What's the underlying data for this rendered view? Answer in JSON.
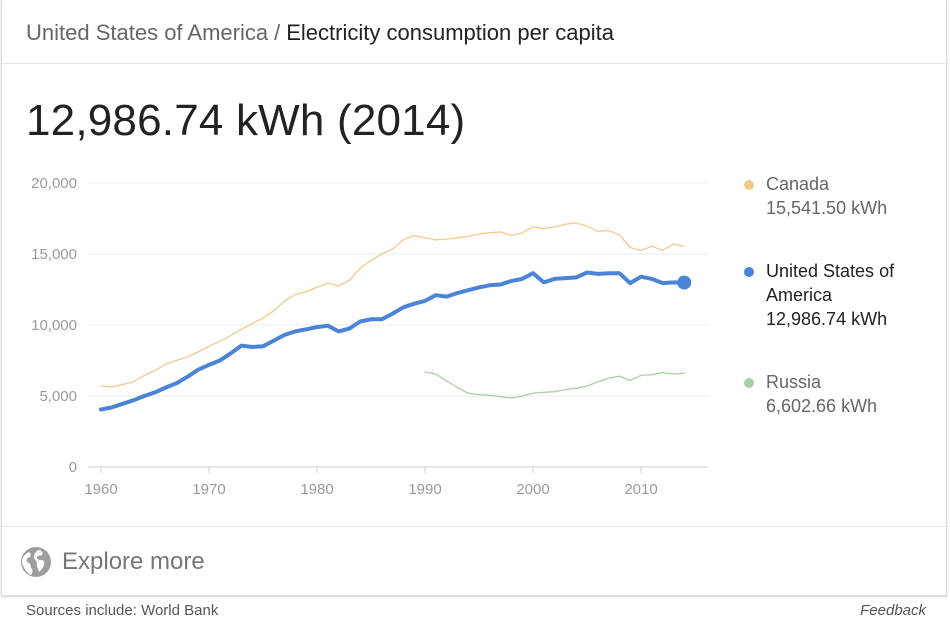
{
  "header": {
    "breadcrumb_parent": "United States of America",
    "separator": "/",
    "breadcrumb_current": "Electricity consumption per capita"
  },
  "headline": {
    "value": "12,986.74 kWh (2014)"
  },
  "legend": [
    {
      "name": "Canada",
      "value": "15,541.50 kWh",
      "color": "#f2c98a"
    },
    {
      "name": "United States of America",
      "value": "12,986.74 kWh",
      "color": "#4a84d6"
    },
    {
      "name": "Russia",
      "value": "6,602.66 kWh",
      "color": "#a7d1a1"
    }
  ],
  "explore": {
    "label": "Explore more",
    "icon": "globe-icon"
  },
  "footer": {
    "sources": "Sources include: World Bank",
    "feedback": "Feedback"
  },
  "chart_data": {
    "type": "line",
    "title": "",
    "xlabel": "",
    "ylabel": "",
    "xlim": [
      1960,
      2014
    ],
    "ylim": [
      0,
      20000
    ],
    "x_ticks": [
      1960,
      1970,
      1980,
      1990,
      2000,
      2010
    ],
    "x_tick_labels": [
      "1960",
      "1970",
      "1980",
      "1990",
      "2000",
      "2010"
    ],
    "y_ticks": [
      0,
      5000,
      10000,
      15000,
      20000
    ],
    "y_tick_labels": [
      "0",
      "5,000",
      "10,000",
      "15,000",
      "20,000"
    ],
    "grid": true,
    "legend_position": "right",
    "series": [
      {
        "name": "Canada",
        "color": "#f2c98a",
        "x": [
          1960,
          1961,
          1962,
          1963,
          1964,
          1965,
          1966,
          1967,
          1968,
          1969,
          1970,
          1971,
          1972,
          1973,
          1974,
          1975,
          1976,
          1977,
          1978,
          1979,
          1980,
          1981,
          1982,
          1983,
          1984,
          1985,
          1986,
          1987,
          1988,
          1989,
          1990,
          1991,
          1992,
          1993,
          1994,
          1995,
          1996,
          1997,
          1998,
          1999,
          2000,
          2001,
          2002,
          2003,
          2004,
          2005,
          2006,
          2007,
          2008,
          2009,
          2010,
          2011,
          2012,
          2013,
          2014
        ],
        "values": [
          5700,
          5650,
          5800,
          6000,
          6450,
          6800,
          7250,
          7500,
          7750,
          8100,
          8500,
          8850,
          9250,
          9700,
          10100,
          10500,
          11000,
          11700,
          12150,
          12350,
          12650,
          12950,
          12750,
          13150,
          14000,
          14550,
          15000,
          15350,
          16000,
          16300,
          16150,
          16000,
          16050,
          16150,
          16250,
          16400,
          16500,
          16550,
          16300,
          16500,
          16900,
          16800,
          16900,
          17100,
          17200,
          16950,
          16600,
          16650,
          16350,
          15450,
          15250,
          15550,
          15250,
          15700,
          15541.5
        ]
      },
      {
        "name": "United States of America",
        "color": "#4a84d6",
        "x": [
          1960,
          1961,
          1962,
          1963,
          1964,
          1965,
          1966,
          1967,
          1968,
          1969,
          1970,
          1971,
          1972,
          1973,
          1974,
          1975,
          1976,
          1977,
          1978,
          1979,
          1980,
          1981,
          1982,
          1983,
          1984,
          1985,
          1986,
          1987,
          1988,
          1989,
          1990,
          1991,
          1992,
          1993,
          1994,
          1995,
          1996,
          1997,
          1998,
          1999,
          2000,
          2001,
          2002,
          2003,
          2004,
          2005,
          2006,
          2007,
          2008,
          2009,
          2010,
          2011,
          2012,
          2013,
          2014
        ],
        "values": [
          4050,
          4200,
          4450,
          4700,
          5000,
          5250,
          5600,
          5900,
          6350,
          6850,
          7200,
          7500,
          8000,
          8550,
          8450,
          8500,
          8900,
          9300,
          9550,
          9700,
          9850,
          9950,
          9550,
          9750,
          10250,
          10400,
          10400,
          10800,
          11250,
          11500,
          11700,
          12100,
          12000,
          12250,
          12450,
          12650,
          12800,
          12850,
          13100,
          13250,
          13650,
          13000,
          13250,
          13300,
          13350,
          13700,
          13600,
          13650,
          13650,
          12950,
          13400,
          13250,
          12950,
          13000,
          12986.74
        ]
      },
      {
        "name": "Russia",
        "color": "#a7d1a1",
        "x": [
          1990,
          1991,
          1992,
          1993,
          1994,
          1995,
          1996,
          1997,
          1998,
          1999,
          2000,
          2001,
          2002,
          2003,
          2004,
          2005,
          2006,
          2007,
          2008,
          2009,
          2010,
          2011,
          2012,
          2013,
          2014
        ],
        "values": [
          6700,
          6550,
          6050,
          5600,
          5200,
          5100,
          5050,
          4950,
          4850,
          5000,
          5200,
          5250,
          5300,
          5450,
          5550,
          5700,
          6000,
          6250,
          6400,
          6100,
          6450,
          6500,
          6650,
          6550,
          6602.66
        ]
      }
    ]
  }
}
